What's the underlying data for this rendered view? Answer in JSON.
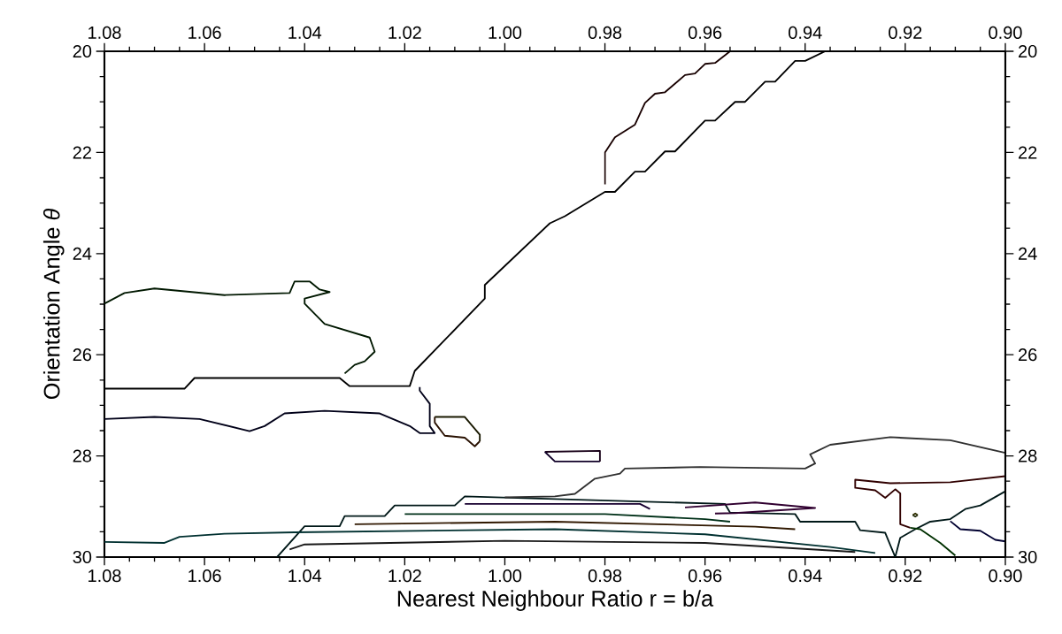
{
  "chart_data": {
    "type": "line",
    "xlabel": "Nearest Neighbour Ratio  r = b/a",
    "ylabel": "Orientation Angle *θ*",
    "xlim": [
      1.08,
      0.9
    ],
    "ylim": [
      30,
      20
    ],
    "x2lim": [
      1.08,
      0.9
    ],
    "y2lim": [
      30,
      20
    ],
    "xticks": [
      {
        "value": 1.08,
        "label": "1.08"
      },
      {
        "value": 1.06,
        "label": "1.06"
      },
      {
        "value": 1.04,
        "label": "1.04"
      },
      {
        "value": 1.02,
        "label": "1.02"
      },
      {
        "value": 1.0,
        "label": "1.00"
      },
      {
        "value": 0.98,
        "label": "0.98"
      },
      {
        "value": 0.96,
        "label": "0.96"
      },
      {
        "value": 0.94,
        "label": "0.94"
      },
      {
        "value": 0.92,
        "label": "0.92"
      },
      {
        "value": 0.9,
        "label": "0.90"
      }
    ],
    "x2ticks": [
      {
        "value": 1.08,
        "label": "1.08"
      },
      {
        "value": 1.06,
        "label": "1.06"
      },
      {
        "value": 1.04,
        "label": "1.04"
      },
      {
        "value": 1.02,
        "label": "1.02"
      },
      {
        "value": 1.0,
        "label": "1.00"
      },
      {
        "value": 0.98,
        "label": "0.98"
      },
      {
        "value": 0.96,
        "label": "0.96"
      },
      {
        "value": 0.94,
        "label": "0.94"
      },
      {
        "value": 0.92,
        "label": "0.92"
      },
      {
        "value": 0.9,
        "label": "0.90"
      }
    ],
    "yticks": [
      20,
      22,
      24,
      26,
      28,
      30
    ],
    "y2ticks": [
      20,
      22,
      24,
      26,
      28,
      30
    ],
    "series": [
      {
        "color": "#000000",
        "x": [
          1.08,
          1.064,
          1.062,
          1.033,
          1.031,
          1.019,
          1.018,
          1.004,
          1.004,
          0.991,
          0.988,
          0.98,
          0.978,
          0.974,
          0.972,
          0.968,
          0.966,
          0.96,
          0.958,
          0.954,
          0.952,
          0.948,
          0.946,
          0.942,
          0.94,
          0.936
        ],
        "values": [
          26.67,
          26.67,
          26.46,
          26.46,
          26.62,
          26.62,
          26.32,
          24.89,
          24.62,
          23.4,
          23.26,
          22.78,
          22.78,
          22.38,
          22.38,
          21.98,
          21.98,
          21.37,
          21.37,
          21.0,
          21.0,
          20.6,
          20.6,
          20.19,
          20.19,
          20.0
        ]
      },
      {
        "color": "#180000",
        "x": [
          0.98,
          0.98,
          0.978,
          0.974,
          0.972,
          0.97,
          0.968,
          0.964,
          0.962,
          0.96,
          0.958,
          0.955
        ],
        "values": [
          22.63,
          22.0,
          21.7,
          21.45,
          21.02,
          20.84,
          20.81,
          20.47,
          20.44,
          20.25,
          20.23,
          20.0
        ]
      },
      {
        "color": "#001800",
        "x": [
          1.08,
          1.076,
          1.07,
          1.056,
          1.043,
          1.042,
          1.039,
          1.037,
          1.035,
          1.04,
          1.04,
          1.036,
          1.027,
          1.026,
          1.028,
          1.03,
          1.032
        ],
        "values": [
          24.99,
          24.78,
          24.69,
          24.82,
          24.78,
          24.55,
          24.55,
          24.71,
          24.76,
          24.89,
          24.99,
          25.39,
          25.66,
          25.94,
          26.13,
          26.2,
          26.37
        ]
      },
      {
        "color": "#000018",
        "x": [
          1.08,
          1.07,
          1.061,
          1.051,
          1.048,
          1.044,
          1.036,
          1.025,
          1.019,
          1.017,
          1.014,
          1.015,
          1.015,
          1.017,
          1.017
        ],
        "values": [
          27.27,
          27.23,
          27.27,
          27.51,
          27.41,
          27.16,
          27.11,
          27.16,
          27.41,
          27.55,
          27.55,
          27.41,
          26.97,
          26.71,
          26.64
        ]
      },
      {
        "color": "#181800",
        "x": [
          1.014,
          1.008,
          1.005,
          1.005
        ],
        "values": [
          27.23,
          27.23,
          27.58,
          27.71
        ]
      },
      {
        "color": "#281000",
        "x": [
          1.005,
          1.006,
          1.008,
          1.012,
          1.014,
          1.014
        ],
        "values": [
          27.71,
          27.81,
          27.64,
          27.6,
          27.34,
          27.23
        ]
      },
      {
        "color": "#180018",
        "x": [
          0.992,
          0.981,
          0.981
        ],
        "values": [
          27.92,
          27.9,
          28.11
        ]
      },
      {
        "color": "#100028",
        "x": [
          0.981,
          0.99,
          0.992
        ],
        "values": [
          28.11,
          28.11,
          27.92
        ]
      },
      {
        "color": "#001818",
        "x": [
          1.0455,
          1.04,
          1.033,
          1.032,
          1.024,
          1.022,
          1.01,
          1.008,
          0.956,
          0.955,
          0.942,
          0.941,
          0.93,
          0.929,
          0.924,
          0.922,
          0.921,
          0.918,
          0.915,
          0.911,
          0.908,
          0.905,
          0.9
        ],
        "values": [
          30.0,
          29.39,
          29.39,
          29.19,
          29.19,
          28.98,
          28.98,
          28.8,
          28.95,
          29.12,
          29.15,
          29.3,
          29.3,
          29.47,
          29.52,
          30.0,
          29.62,
          29.45,
          29.3,
          29.25,
          29.05,
          28.98,
          28.7
        ]
      },
      {
        "color": "#303030",
        "x": [
          1.0,
          0.99,
          0.986,
          0.982,
          0.977,
          0.976,
          0.961,
          0.94,
          0.938,
          0.939,
          0.935,
          0.923,
          0.911,
          0.9
        ],
        "values": [
          28.82,
          28.8,
          28.75,
          28.45,
          28.35,
          28.25,
          28.22,
          28.25,
          28.15,
          27.97,
          27.78,
          27.63,
          27.69,
          27.94
        ]
      },
      {
        "color": "#300000",
        "x": [
          0.9,
          0.911,
          0.923,
          0.93,
          0.93,
          0.926,
          0.924,
          0.922,
          0.921,
          0.921,
          0.919
        ],
        "values": [
          28.4,
          28.52,
          28.54,
          28.47,
          28.63,
          28.68,
          28.83,
          28.66,
          28.74,
          29.35,
          29.42
        ]
      },
      {
        "color": "#003000",
        "x": [
          0.919,
          0.917,
          0.913,
          0.91
        ],
        "values": [
          29.42,
          29.45,
          29.72,
          29.97
        ]
      },
      {
        "color": "#000030",
        "x": [
          0.911,
          0.909,
          0.905,
          0.902,
          0.9
        ],
        "values": [
          29.29,
          29.45,
          29.48,
          29.66,
          29.69
        ]
      },
      {
        "color": "#303000",
        "x": [
          0.9185,
          0.918,
          0.9175
        ],
        "values": [
          29.17,
          29.14,
          29.17
        ]
      },
      {
        "color": "#283010",
        "x": [
          0.9175,
          0.918,
          0.9185
        ],
        "values": [
          29.17,
          29.2,
          29.17
        ]
      },
      {
        "color": "#300030",
        "x": [
          0.964,
          0.95,
          0.938,
          0.954,
          0.958
        ],
        "values": [
          29.02,
          28.92,
          29.03,
          29.13,
          29.14
        ]
      },
      {
        "color": "#003030",
        "x": [
          1.08,
          1.068,
          1.065,
          1.056,
          1.042,
          0.99,
          0.96,
          0.935,
          0.926
        ],
        "values": [
          29.7,
          29.72,
          29.6,
          29.54,
          29.51,
          29.45,
          29.55,
          29.8,
          29.92
        ]
      },
      {
        "color": "#181818",
        "x": [
          1.043,
          1.04,
          1.0,
          0.96,
          0.93
        ],
        "values": [
          29.85,
          29.75,
          29.68,
          29.72,
          29.9
        ]
      },
      {
        "color": "#301800",
        "x": [
          1.03,
          0.99,
          0.95,
          0.942
        ],
        "values": [
          29.35,
          29.3,
          29.4,
          29.45
        ]
      },
      {
        "color": "#003018",
        "x": [
          1.02,
          0.98,
          0.96,
          0.955
        ],
        "values": [
          29.15,
          29.15,
          29.25,
          29.3
        ]
      },
      {
        "color": "#180030",
        "x": [
          1.008,
          0.98,
          0.973,
          0.971
        ],
        "values": [
          28.95,
          28.95,
          28.95,
          29.05
        ]
      }
    ]
  }
}
